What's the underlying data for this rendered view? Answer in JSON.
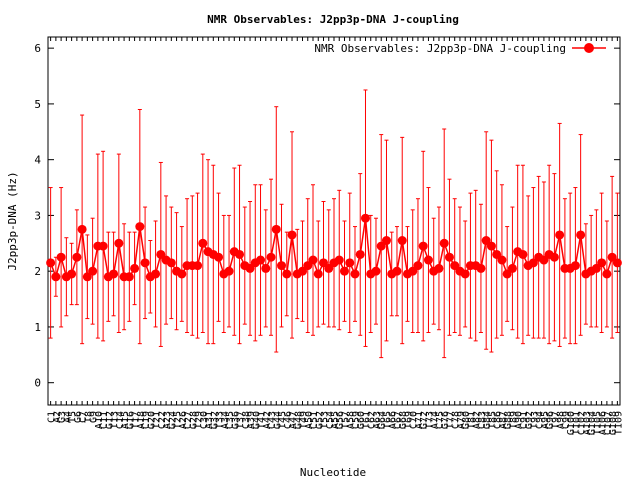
{
  "chart_data": {
    "type": "line",
    "title": "NMR Observables: J2pp3p-DNA J-coupling",
    "xlabel": "Nucleotide",
    "ylabel": "J2pp3p-DNA (Hz)",
    "ylim": [
      -0.4,
      6.2
    ],
    "yticks": [
      0,
      1,
      2,
      3,
      4,
      5,
      6
    ],
    "grid": false,
    "legend_position": "top-right",
    "series": [
      {
        "name": "NMR Observables: J2pp3p-DNA J-coupling",
        "color": "#ff0000",
        "marker": "circle",
        "values": [
          2.15,
          1.9,
          2.25,
          1.9,
          1.95,
          2.25,
          2.75,
          1.9,
          2.0,
          2.45,
          2.45,
          1.9,
          1.95,
          2.5,
          1.9,
          1.9,
          2.05,
          2.8,
          2.15,
          1.9,
          1.95,
          2.3,
          2.2,
          2.15,
          2.0,
          1.95,
          2.1,
          2.1,
          2.1,
          2.5,
          2.35,
          2.3,
          2.25,
          1.95,
          2.0,
          2.35,
          2.3,
          2.1,
          2.05,
          2.15,
          2.2,
          2.05,
          2.25,
          2.75,
          2.1,
          1.95,
          2.65,
          1.95,
          2.0,
          2.1,
          2.2,
          1.95,
          2.15,
          2.05,
          2.15,
          2.2,
          2.0,
          2.15,
          1.95,
          2.3,
          2.95,
          1.95,
          2.0,
          2.45,
          2.55,
          1.95,
          2.0,
          2.55,
          1.95,
          2.0,
          2.1,
          2.45,
          2.2,
          2.0,
          2.05,
          2.5,
          2.25,
          2.1,
          2.0,
          1.95,
          2.1,
          2.1,
          2.05,
          2.55,
          2.45,
          2.3,
          2.2,
          1.95,
          2.05,
          2.35,
          2.3,
          2.1,
          2.15,
          2.25,
          2.2,
          2.3,
          2.25,
          2.65,
          2.05,
          2.05,
          2.1,
          2.65,
          1.95,
          2.0,
          2.05,
          2.15,
          1.95,
          2.25,
          2.15
        ],
        "errors": [
          1.35,
          0.35,
          1.25,
          0.7,
          0.55,
          0.85,
          2.05,
          0.75,
          0.95,
          1.65,
          1.7,
          0.8,
          0.75,
          1.6,
          0.95,
          0.8,
          0.65,
          2.1,
          1.0,
          0.65,
          0.95,
          1.65,
          1.15,
          1.0,
          1.05,
          0.85,
          1.2,
          1.25,
          1.3,
          1.6,
          1.65,
          1.6,
          1.15,
          1.05,
          1.0,
          1.5,
          1.6,
          1.05,
          1.2,
          1.4,
          1.35,
          1.05,
          1.4,
          2.2,
          1.1,
          0.75,
          1.85,
          0.8,
          0.9,
          1.2,
          1.35,
          0.95,
          1.1,
          1.05,
          1.15,
          1.25,
          0.9,
          1.25,
          0.85,
          1.45,
          2.3,
          1.05,
          0.95,
          2.0,
          1.8,
          0.75,
          0.8,
          1.85,
          0.85,
          1.1,
          1.2,
          1.7,
          1.3,
          0.95,
          1.1,
          2.05,
          1.4,
          1.2,
          1.15,
          0.95,
          1.3,
          1.35,
          1.15,
          1.95,
          1.9,
          1.5,
          1.35,
          0.85,
          1.1,
          1.55,
          1.6,
          1.25,
          1.35,
          1.45,
          1.4,
          1.6,
          1.5,
          2.0,
          1.25,
          1.35,
          1.4,
          1.8,
          0.9,
          1.0,
          1.05,
          1.25,
          0.95,
          1.45,
          1.25
        ]
      }
    ],
    "x_tick_labels": [
      "C1",
      "A2",
      "G3",
      "A4",
      "T5",
      "G6",
      "C7",
      "T8",
      "G9",
      "A10",
      "C11",
      "G12",
      "T13",
      "C14",
      "A15",
      "G16",
      "T17",
      "A18",
      "C19",
      "G20",
      "T21",
      "C22",
      "A23",
      "G24",
      "T25",
      "A26",
      "C27",
      "G28",
      "T29",
      "C30",
      "A31",
      "G32",
      "T33",
      "A34",
      "C35",
      "G36",
      "T37",
      "C38",
      "A39",
      "G40",
      "T41",
      "A42",
      "C43",
      "G44",
      "T45",
      "C46",
      "A47",
      "G48",
      "T49",
      "A50",
      "C51",
      "G52",
      "T53",
      "C54",
      "A55",
      "G56",
      "T57",
      "A58",
      "C59",
      "G60",
      "T61",
      "C62",
      "A63",
      "G64",
      "T65",
      "A66",
      "C67",
      "G68",
      "T69",
      "C70",
      "A71",
      "G72",
      "T73",
      "A74",
      "C75",
      "G76",
      "T77",
      "C78",
      "A79",
      "G80",
      "T81",
      "A82",
      "C83",
      "G84",
      "T85",
      "C86",
      "A87",
      "G88",
      "T89",
      "A90",
      "C91",
      "G92",
      "T93",
      "C94",
      "A95",
      "G96",
      "T97",
      "A98",
      "C99",
      "G100",
      "T101",
      "C102",
      "A103",
      "G104",
      "T105",
      "A106",
      "C107",
      "G108",
      "T109"
    ]
  }
}
